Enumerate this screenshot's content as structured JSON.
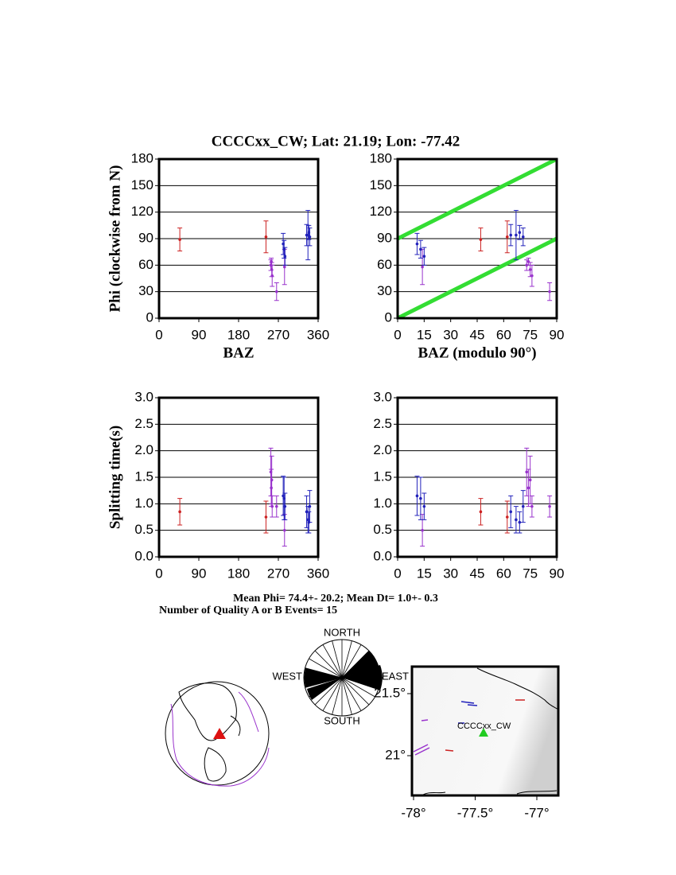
{
  "title": "CCCCxx_CW; Lat:  21.19;  Lon:  -77.42",
  "summary": [
    "Mean Phi= 74.4+- 20.2; Mean Dt=  1.0+-  0.3",
    "Number of Quality A or B Events= 15"
  ],
  "chart_data": [
    {
      "type": "errorbar",
      "ylabel": "Phi (clockwise from N)",
      "xlabel": "BAZ",
      "xlim": [
        0,
        360
      ],
      "xticks": [
        0,
        90,
        180,
        270,
        360
      ],
      "ylim": [
        0,
        180
      ],
      "yticks": [
        0,
        30,
        60,
        90,
        120,
        150,
        180
      ],
      "grid": true,
      "series": [
        {
          "color": "#cc2222",
          "x": [
            47,
            242
          ],
          "values": [
            89,
            92
          ],
          "errors": [
            13,
            18
          ]
        },
        {
          "color": "#9933cc",
          "x": [
            253,
            254,
            255,
            256,
            266,
            284
          ],
          "values": [
            60,
            64,
            55,
            48,
            30,
            58
          ],
          "errors": [
            6,
            4,
            8,
            12,
            10,
            20
          ]
        },
        {
          "color": "#2222bb",
          "x": [
            281,
            283,
            285,
            334,
            337,
            339,
            341
          ],
          "values": [
            84,
            78,
            70,
            94,
            94,
            97,
            92
          ],
          "errors": [
            12,
            10,
            10,
            12,
            28,
            8,
            10
          ]
        }
      ]
    },
    {
      "type": "errorbar",
      "xlabel": "BAZ (modulo 90°)",
      "xlim": [
        0,
        90
      ],
      "xticks": [
        0,
        15,
        30,
        45,
        60,
        75,
        90
      ],
      "ylim": [
        0,
        180
      ],
      "yticks": [
        0,
        30,
        60,
        90,
        120,
        150,
        180
      ],
      "grid": true,
      "lines": [
        {
          "color": "#33dd33",
          "x": [
            0,
            90
          ],
          "values": [
            0,
            90
          ]
        },
        {
          "color": "#33dd33",
          "x": [
            0,
            90
          ],
          "values": [
            90,
            180
          ]
        }
      ],
      "series": [
        {
          "color": "#cc2222",
          "x": [
            47,
            62
          ],
          "values": [
            89,
            92
          ],
          "errors": [
            13,
            18
          ]
        },
        {
          "color": "#9933cc",
          "x": [
            73,
            74,
            75,
            76,
            86,
            14
          ],
          "values": [
            60,
            64,
            55,
            48,
            30,
            58
          ],
          "errors": [
            6,
            4,
            8,
            12,
            10,
            20
          ]
        },
        {
          "color": "#2222bb",
          "x": [
            11,
            13,
            15,
            64,
            67,
            69,
            71
          ],
          "values": [
            84,
            78,
            70,
            94,
            94,
            97,
            92
          ],
          "errors": [
            12,
            10,
            10,
            12,
            28,
            8,
            10
          ]
        }
      ]
    },
    {
      "type": "errorbar",
      "ylabel": "Splitting time(s)",
      "xlim": [
        0,
        360
      ],
      "xticks": [
        0,
        90,
        180,
        270,
        360
      ],
      "ylim": [
        0,
        3
      ],
      "yticks": [
        {
          "value": 0,
          "label": "0.0"
        },
        0.5,
        {
          "value": 1,
          "label": "1.0"
        },
        1.5,
        {
          "value": 2,
          "label": "2.0"
        },
        2.5,
        {
          "value": 3,
          "label": "3.0"
        }
      ],
      "grid": true,
      "series": [
        {
          "color": "#cc2222",
          "x": [
            47,
            242
          ],
          "values": [
            0.85,
            0.75
          ],
          "errors": [
            0.25,
            0.3
          ]
        },
        {
          "color": "#9933cc",
          "x": [
            253,
            254,
            255,
            256,
            266,
            284
          ],
          "values": [
            1.6,
            1.3,
            1.45,
            0.95,
            0.95,
            0.5
          ],
          "errors": [
            0.45,
            0.35,
            0.45,
            0.2,
            0.2,
            0.3
          ]
        },
        {
          "color": "#2222bb",
          "x": [
            281,
            283,
            285,
            334,
            337,
            339,
            341
          ],
          "values": [
            1.15,
            1.1,
            0.95,
            0.85,
            0.7,
            0.65,
            0.95
          ],
          "errors": [
            0.37,
            0.4,
            0.25,
            0.3,
            0.25,
            0.2,
            0.3
          ]
        }
      ]
    },
    {
      "type": "errorbar",
      "xlim": [
        0,
        90
      ],
      "xticks": [
        0,
        15,
        30,
        45,
        60,
        75,
        90
      ],
      "ylim": [
        0,
        3
      ],
      "yticks": [
        {
          "value": 0,
          "label": "0.0"
        },
        0.5,
        {
          "value": 1,
          "label": "1.0"
        },
        1.5,
        {
          "value": 2,
          "label": "2.0"
        },
        2.5,
        {
          "value": 3,
          "label": "3.0"
        }
      ],
      "grid": true,
      "series": [
        {
          "color": "#cc2222",
          "x": [
            47,
            62
          ],
          "values": [
            0.85,
            0.75
          ],
          "errors": [
            0.25,
            0.3
          ]
        },
        {
          "color": "#9933cc",
          "x": [
            73,
            74,
            75,
            76,
            86,
            14
          ],
          "values": [
            1.6,
            1.3,
            1.45,
            0.95,
            0.95,
            0.5
          ],
          "errors": [
            0.45,
            0.35,
            0.45,
            0.2,
            0.2,
            0.3
          ]
        },
        {
          "color": "#2222bb",
          "x": [
            11,
            13,
            15,
            64,
            67,
            69,
            71
          ],
          "values": [
            1.15,
            1.1,
            0.95,
            0.85,
            0.7,
            0.65,
            0.95
          ],
          "errors": [
            0.37,
            0.4,
            0.25,
            0.3,
            0.25,
            0.2,
            0.3
          ]
        }
      ]
    }
  ],
  "rose": {
    "north": "NORTH",
    "south": "SOUTH",
    "west": "WEST",
    "east": "EAST"
  },
  "map": {
    "station": "CCCCxx_CW",
    "xticks": [
      {
        "value": -78,
        "label": "-78°"
      },
      {
        "value": -77.5,
        "label": "-77.5°"
      },
      {
        "value": -77,
        "label": "-77°"
      }
    ],
    "yticks": [
      {
        "value": 21.5,
        "label": "21.5°"
      },
      {
        "value": 21,
        "label": "21°"
      }
    ]
  }
}
